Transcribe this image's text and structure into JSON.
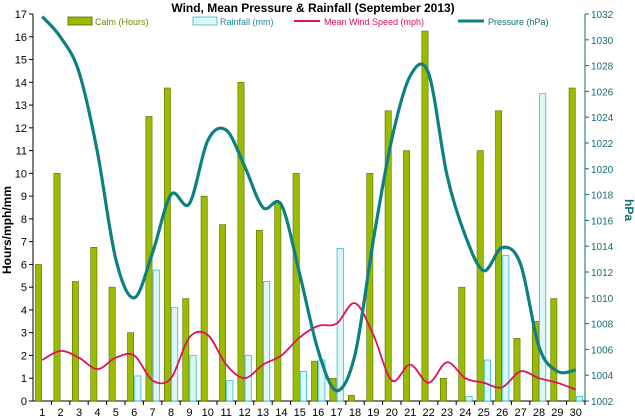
{
  "chart_data": {
    "type": "bar",
    "title": "Wind, Mean Pressure & Rainfall (September 2013)",
    "ylabel": "Hours/mph/mm",
    "y2label": "hPa",
    "ylim": [
      0,
      17
    ],
    "y2lim": [
      1002,
      1032
    ],
    "x": [
      1,
      2,
      3,
      4,
      5,
      6,
      7,
      8,
      9,
      10,
      11,
      12,
      13,
      14,
      15,
      16,
      17,
      18,
      19,
      20,
      21,
      22,
      23,
      24,
      25,
      26,
      27,
      28,
      29,
      30
    ],
    "yticks": [
      0,
      1,
      2,
      3,
      4,
      5,
      6,
      7,
      8,
      9,
      10,
      11,
      12,
      13,
      14,
      15,
      16,
      17
    ],
    "y2ticks": [
      1002,
      1004,
      1006,
      1008,
      1010,
      1012,
      1014,
      1016,
      1018,
      1020,
      1022,
      1024,
      1026,
      1028,
      1030,
      1032
    ],
    "grid": false,
    "legend": "top",
    "series": [
      {
        "name": "Calm (Hours)",
        "type": "bar",
        "axis": "left",
        "color": "#99bb00",
        "values": [
          6,
          10,
          5.25,
          6.75,
          5,
          3,
          12.5,
          13.75,
          4.5,
          9,
          7.75,
          14,
          7.5,
          8.75,
          10,
          1.75,
          1,
          0.25,
          10,
          12.75,
          11,
          16.25,
          1,
          5,
          11,
          12.75,
          2.75,
          3.5,
          4.5,
          13.75
        ]
      },
      {
        "name": "Rainfall (mm)",
        "type": "bar",
        "axis": "left",
        "color": "#ddf7f7",
        "stroke": "#33bbcc",
        "values": [
          0,
          0,
          0,
          0,
          0,
          1.1,
          5.75,
          4.1,
          2,
          0,
          0.9,
          2,
          5.25,
          0,
          1.3,
          1.8,
          6.7,
          0,
          0,
          0,
          0,
          0,
          0,
          0.2,
          1.8,
          6.4,
          0,
          13.5,
          0,
          0.2
        ]
      },
      {
        "name": "Mean Wind Speed (mph)",
        "type": "line",
        "axis": "left",
        "color": "#e0105a",
        "values": [
          1.8,
          2.2,
          1.9,
          1.4,
          1.9,
          2.0,
          0.9,
          1.0,
          2.8,
          2.9,
          1.6,
          1.0,
          1.6,
          2.0,
          2.8,
          3.3,
          3.4,
          4.3,
          2.9,
          0.9,
          1.6,
          0.8,
          1.7,
          1.0,
          0.8,
          0.6,
          1.3,
          1.0,
          0.8,
          0.5
        ]
      },
      {
        "name": "Pressure (hPa)",
        "type": "line",
        "axis": "right",
        "color": "#0f8080",
        "values": [
          1031.8,
          1030.2,
          1027.5,
          1021.3,
          1013,
          1010,
          1013.5,
          1018,
          1017.3,
          1022.2,
          1023,
          1020.2,
          1017,
          1017.2,
          1011.8,
          1005.9,
          1002.8,
          1005.6,
          1014.5,
          1022.3,
          1027.2,
          1027.4,
          1019.5,
          1014.8,
          1012.1,
          1013.9,
          1012.6,
          1006.2,
          1004.3,
          1004.4
        ]
      }
    ]
  }
}
